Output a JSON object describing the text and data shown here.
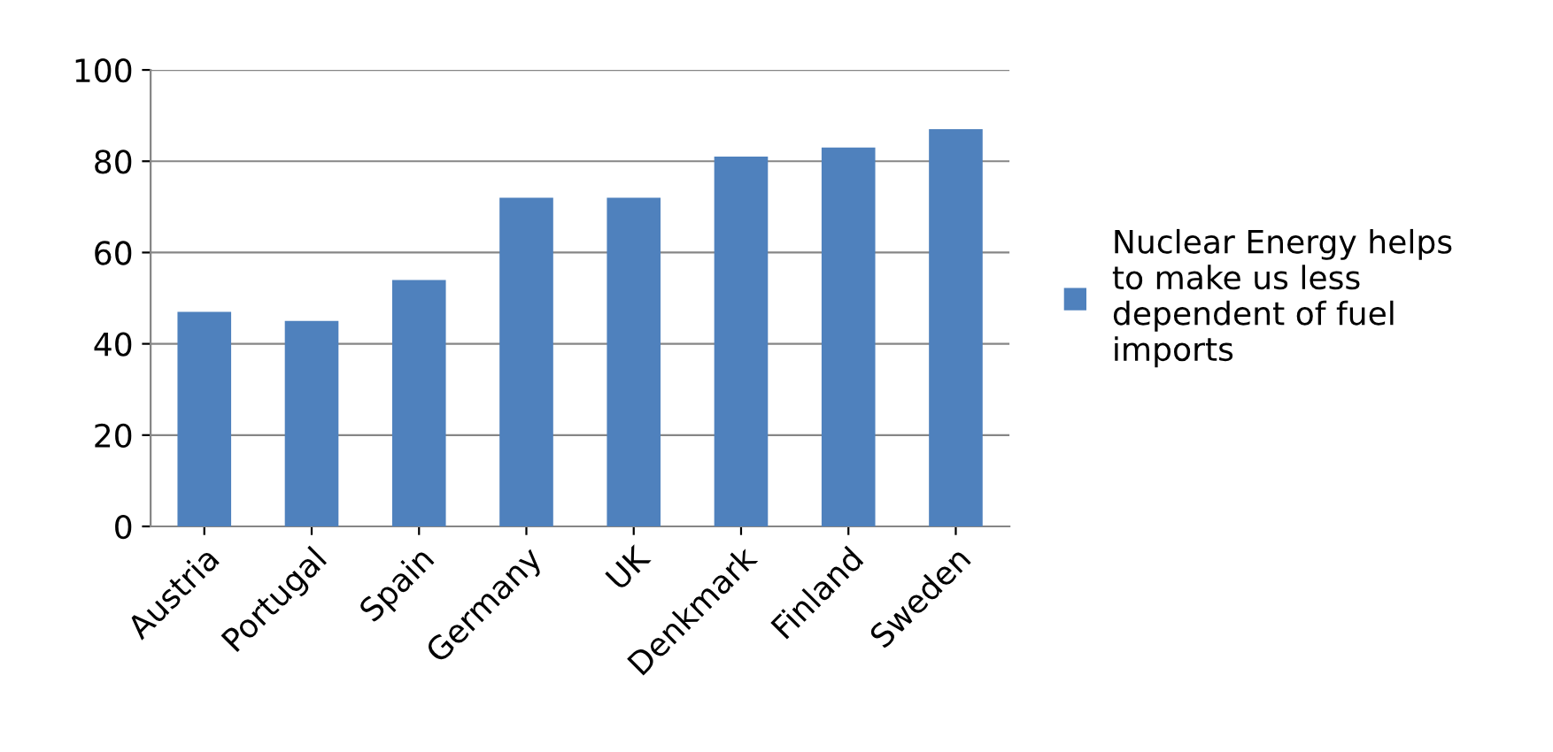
{
  "chart_data": {
    "type": "bar",
    "categories": [
      "Austria",
      "Portugal",
      "Spain",
      "Germany",
      "UK",
      "Denkmark",
      "Finland",
      "Sweden"
    ],
    "series": [
      {
        "name": "Nuclear Energy helps\nto make us less\ndependent of fuel\nimports",
        "color": "#4f81bd",
        "values": [
          47,
          45,
          54,
          72,
          72,
          81,
          83,
          87
        ]
      }
    ],
    "ylim": [
      0,
      100
    ],
    "yticks": [
      0,
      20,
      40,
      60,
      80,
      100
    ],
    "grid": "y",
    "legend": "right"
  }
}
